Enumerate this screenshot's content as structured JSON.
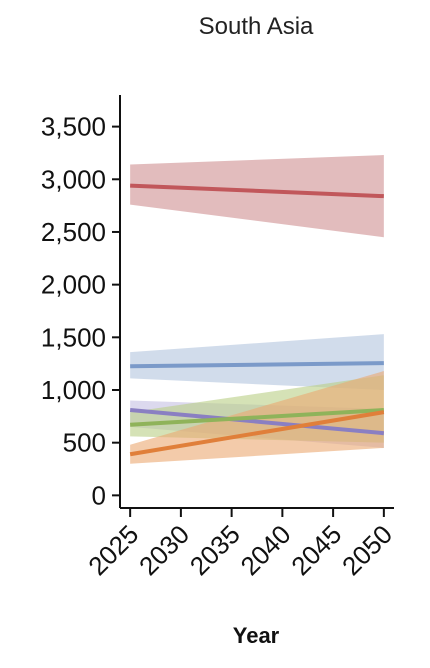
{
  "chart_data": {
    "type": "line",
    "title": "South Asia",
    "xlabel": "Year",
    "ylabel": "",
    "x": [
      2025,
      2050
    ],
    "xticks": [
      2025,
      2030,
      2035,
      2040,
      2045,
      2050
    ],
    "xlim": [
      2024,
      2051
    ],
    "yticks": [
      0,
      500,
      1000,
      1500,
      2000,
      2500,
      3000,
      3500
    ],
    "ytick_labels": [
      "0",
      "500",
      "1,000",
      "1,500",
      "2,000",
      "2,500",
      "3,000",
      "3,500"
    ],
    "ylim": [
      -120,
      3800
    ],
    "grid": false,
    "series": [
      {
        "color": "#c1575b",
        "fill": "#cf8f91",
        "values": [
          2940,
          2840
        ],
        "lower": [
          2760,
          2450
        ],
        "upper": [
          3140,
          3230
        ]
      },
      {
        "color": "#7b9ac9",
        "fill": "#b3c5de",
        "values": [
          1225,
          1255
        ],
        "lower": [
          1110,
          1000
        ],
        "upper": [
          1360,
          1530
        ]
      },
      {
        "color": "#8a7fc2",
        "fill": "#c4bfe3",
        "values": [
          810,
          590
        ],
        "lower": [
          650,
          450
        ],
        "upper": [
          900,
          820
        ]
      },
      {
        "color": "#8fb35a",
        "fill": "#b9cf86",
        "values": [
          670,
          810
        ],
        "lower": [
          560,
          500
        ],
        "upper": [
          790,
          1140
        ]
      },
      {
        "color": "#e07f3a",
        "fill": "#eba871",
        "values": [
          390,
          790
        ],
        "lower": [
          300,
          450
        ],
        "upper": [
          480,
          1180
        ]
      }
    ]
  }
}
